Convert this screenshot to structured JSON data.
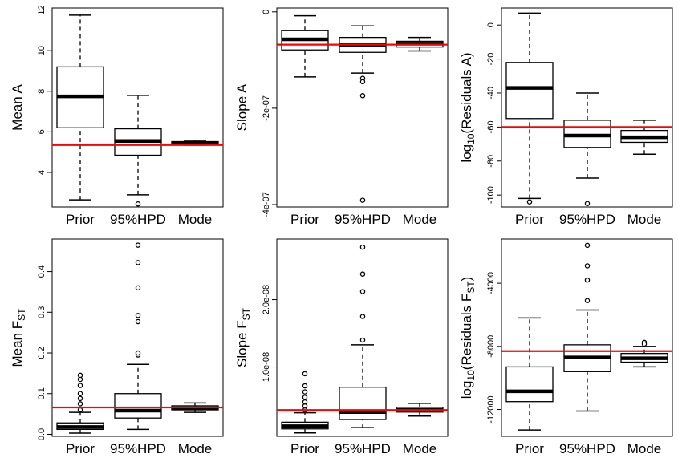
{
  "chart_data": [
    {
      "type": "boxplot",
      "ylabel": "Mean A",
      "categories": [
        "Prior",
        "95%HPD",
        "Mode"
      ],
      "yticks": [
        4,
        6,
        8,
        10,
        12
      ],
      "ytick_labels": [
        "4",
        "6",
        "8",
        "10",
        "12"
      ],
      "ylim": [
        2.3,
        12.1
      ],
      "reference_line": 5.35,
      "reference_color": "#ff0000",
      "boxes": [
        {
          "whisker_low": 2.65,
          "q1": 6.2,
          "median": 7.75,
          "q3": 9.2,
          "whisker_high": 11.75,
          "outliers": []
        },
        {
          "whisker_low": 2.9,
          "q1": 4.85,
          "median": 5.55,
          "q3": 6.15,
          "whisker_high": 7.8,
          "outliers": [
            2.45
          ]
        },
        {
          "whisker_low": 5.35,
          "q1": 5.4,
          "median": 5.45,
          "q3": 5.52,
          "whisker_high": 5.58,
          "outliers": []
        }
      ]
    },
    {
      "type": "boxplot",
      "ylabel": "Slope A",
      "categories": [
        "Prior",
        "95%HPD",
        "Mode"
      ],
      "yticks": [
        0,
        -2e-07,
        -4e-07
      ],
      "ytick_labels": [
        "0",
        "-2e-07",
        "-4e-07"
      ],
      "ylim": [
        -4.05e-07,
        8e-09
      ],
      "reference_line": -6.8e-08,
      "reference_color": "#ff0000",
      "boxes": [
        {
          "whisker_low": -1.35e-07,
          "q1": -7.9e-08,
          "median": -5.7e-08,
          "q3": -3.9e-08,
          "whisker_high": -8e-09,
          "outliers": []
        },
        {
          "whisker_low": -1.27e-07,
          "q1": -8.4e-08,
          "median": -6.9e-08,
          "q3": -5.3e-08,
          "whisker_high": -2.9e-08,
          "outliers": [
            -1.38e-07,
            -1.45e-07,
            -1.74e-07,
            -3.91e-07
          ]
        },
        {
          "whisker_low": -8.1e-08,
          "q1": -7.3e-08,
          "median": -6.6e-08,
          "q3": -6.1e-08,
          "whisker_high": -5.3e-08,
          "outliers": []
        }
      ]
    },
    {
      "type": "boxplot",
      "ylabel_parts": [
        "log",
        "10",
        "(Residuals A)"
      ],
      "categories": [
        "Prior",
        "95%HPD",
        "Mode"
      ],
      "yticks": [
        0,
        -20,
        -40,
        -60,
        -80,
        -100
      ],
      "ytick_labels": [
        "0",
        "-20",
        "-40",
        "-60",
        "-80",
        "-100"
      ],
      "ylim": [
        -107,
        10
      ],
      "reference_line": -60,
      "reference_color": "#ff0000",
      "boxes": [
        {
          "whisker_low": -102,
          "q1": -55,
          "median": -37,
          "q3": -22,
          "whisker_high": 7,
          "outliers": [
            -104
          ]
        },
        {
          "whisker_low": -90,
          "q1": -72,
          "median": -65,
          "q3": -56,
          "whisker_high": -40,
          "outliers": [
            -105
          ]
        },
        {
          "whisker_low": -76,
          "q1": -69,
          "median": -66,
          "q3": -62,
          "whisker_high": -56,
          "outliers": []
        }
      ]
    },
    {
      "type": "boxplot",
      "ylabel_parts": [
        "Mean F",
        "ST",
        ""
      ],
      "categories": [
        "Prior",
        "95%HPD",
        "Mode"
      ],
      "yticks": [
        0.0,
        0.1,
        0.2,
        0.3,
        0.4
      ],
      "ytick_labels": [
        "0.0",
        "0.1",
        "0.2",
        "0.3",
        "0.4"
      ],
      "ylim": [
        -0.005,
        0.48
      ],
      "reference_line": 0.066,
      "reference_color": "#ff0000",
      "boxes": [
        {
          "whisker_low": 0.003,
          "q1": 0.012,
          "median": 0.018,
          "q3": 0.028,
          "whisker_high": 0.054,
          "outliers": [
            0.06,
            0.075,
            0.088,
            0.1,
            0.12,
            0.135,
            0.145
          ]
        },
        {
          "whisker_low": 0.012,
          "q1": 0.04,
          "median": 0.058,
          "q3": 0.1,
          "whisker_high": 0.172,
          "outliers": [
            0.195,
            0.2,
            0.277,
            0.292,
            0.36,
            0.422,
            0.465
          ]
        },
        {
          "whisker_low": 0.054,
          "q1": 0.06,
          "median": 0.064,
          "q3": 0.07,
          "whisker_high": 0.077,
          "outliers": []
        }
      ]
    },
    {
      "type": "boxplot",
      "ylabel_parts": [
        "Slope F",
        "ST",
        ""
      ],
      "categories": [
        "Prior",
        "95%HPD",
        "Mode"
      ],
      "yticks": [
        1e-08,
        2e-08
      ],
      "ytick_labels": [
        "1.0e-08",
        "2.0e-08"
      ],
      "ylim": [
        -3e-10,
        2.9e-08
      ],
      "reference_line": 3.6e-09,
      "reference_color": "#ff0000",
      "boxes": [
        {
          "whisker_low": 2e-10,
          "q1": 8e-10,
          "median": 1.2e-09,
          "q3": 1.8e-09,
          "whisker_high": 3.2e-09,
          "outliers": [
            3.6e-09,
            4.2e-09,
            4.8e-09,
            5.5e-09,
            6.3e-09,
            7.2e-09,
            9e-09
          ]
        },
        {
          "whisker_low": 1e-09,
          "q1": 2.2e-09,
          "median": 3.3e-09,
          "q3": 7e-09,
          "whisker_high": 1.33e-08,
          "outliers": [
            1.4e-08,
            1.75e-08,
            2.12e-08,
            2.38e-08,
            2.78e-08
          ]
        },
        {
          "whisker_low": 2.7e-09,
          "q1": 3.3e-09,
          "median": 3.6e-09,
          "q3": 4e-09,
          "whisker_high": 4.6e-09,
          "outliers": []
        }
      ]
    },
    {
      "type": "boxplot",
      "ylabel_parts": [
        "log",
        "10",
        "(Residuals F",
        "ST",
        ")"
      ],
      "categories": [
        "Prior",
        "95%HPD",
        "Mode"
      ],
      "yticks": [
        -12000,
        -8000,
        -4000
      ],
      "ytick_labels": [
        "-12000",
        "-8000",
        "-4000"
      ],
      "ylim": [
        -13700,
        -1200
      ],
      "reference_line": -8300,
      "reference_color": "#ff0000",
      "boxes": [
        {
          "whisker_low": -13300,
          "q1": -11500,
          "median": -10850,
          "q3": -9300,
          "whisker_high": -6200,
          "outliers": []
        },
        {
          "whisker_low": -12100,
          "q1": -9600,
          "median": -8700,
          "q3": -7900,
          "whisker_high": -5700,
          "outliers": [
            -5100,
            -3800,
            -2900,
            -1600
          ]
        },
        {
          "whisker_low": -9300,
          "q1": -9000,
          "median": -8750,
          "q3": -8450,
          "whisker_high": -8000,
          "outliers": [
            -7750,
            -7850
          ]
        }
      ]
    }
  ]
}
